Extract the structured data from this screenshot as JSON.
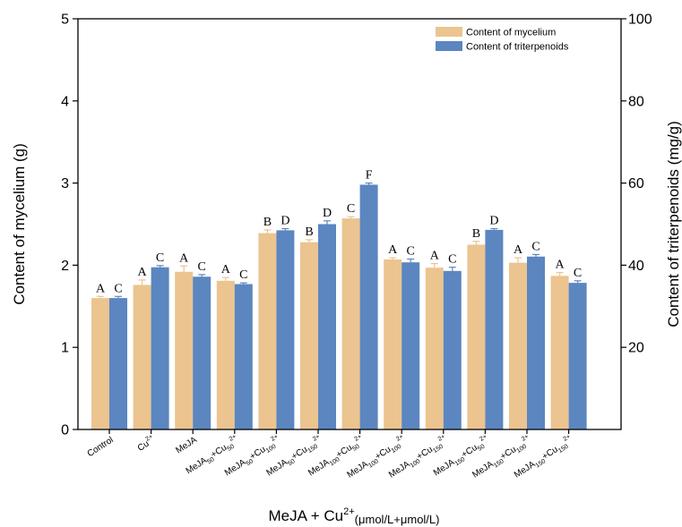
{
  "chart_data": {
    "type": "bar",
    "categories": [
      {
        "id": "control",
        "base": "Control",
        "sub1": "",
        "sup1": "",
        "plus": "",
        "base2": "",
        "sub2": "",
        "sup2": ""
      },
      {
        "id": "cu",
        "base": "Cu",
        "sub1": "",
        "sup1": "2+",
        "plus": "",
        "base2": "",
        "sub2": "",
        "sup2": ""
      },
      {
        "id": "meja",
        "base": "MeJA",
        "sub1": "",
        "sup1": "",
        "plus": "",
        "base2": "",
        "sub2": "",
        "sup2": ""
      },
      {
        "id": "m50c50",
        "base": "MeJA",
        "sub1": "50",
        "sup1": "",
        "plus": "+",
        "base2": "Cu",
        "sub2": "50",
        "sup2": "2+"
      },
      {
        "id": "m50c100",
        "base": "MeJA",
        "sub1": "50",
        "sup1": "",
        "plus": "+",
        "base2": "Cu",
        "sub2": "100",
        "sup2": "2+"
      },
      {
        "id": "m50c150",
        "base": "MeJA",
        "sub1": "50",
        "sup1": "",
        "plus": "+",
        "base2": "Cu",
        "sub2": "150",
        "sup2": "2+"
      },
      {
        "id": "m100c50",
        "base": "MeJA",
        "sub1": "100",
        "sup1": "",
        "plus": "+",
        "base2": "Cu",
        "sub2": "50",
        "sup2": "2+"
      },
      {
        "id": "m100c100",
        "base": "MeJA",
        "sub1": "100",
        "sup1": "",
        "plus": "+",
        "base2": "Cu",
        "sub2": "100",
        "sup2": "2+"
      },
      {
        "id": "m100c150",
        "base": "MeJA",
        "sub1": "100",
        "sup1": "",
        "plus": "+",
        "base2": "Cu",
        "sub2": "150",
        "sup2": "2+"
      },
      {
        "id": "m150c50",
        "base": "MeJA",
        "sub1": "150",
        "sup1": "",
        "plus": "+",
        "base2": "Cu",
        "sub2": "50",
        "sup2": "2+"
      },
      {
        "id": "m150c100",
        "base": "MeJA",
        "sub1": "150",
        "sup1": "",
        "plus": "+",
        "base2": "Cu",
        "sub2": "100",
        "sup2": "2+"
      },
      {
        "id": "m150c150",
        "base": "MeJA",
        "sub1": "150",
        "sup1": "",
        "plus": "+",
        "base2": "Cu",
        "sub2": "150",
        "sup2": "2+"
      }
    ],
    "series": [
      {
        "name": "Content of mycelium",
        "axis": "left",
        "color": "#EBC48F",
        "values": [
          1.6,
          1.76,
          1.92,
          1.81,
          2.39,
          2.28,
          2.57,
          2.07,
          1.97,
          2.25,
          2.03,
          1.87
        ],
        "errors": [
          0.02,
          0.06,
          0.07,
          0.04,
          0.04,
          0.03,
          0.02,
          0.02,
          0.05,
          0.04,
          0.06,
          0.04
        ],
        "letters": [
          "A",
          "A",
          "A",
          "A",
          "B",
          "B",
          "C",
          "A",
          "A",
          "B",
          "A",
          "A"
        ]
      },
      {
        "name": "Content of triterpenoids",
        "axis": "right",
        "color": "#5B86C0",
        "values": [
          32.0,
          39.5,
          37.2,
          35.4,
          48.5,
          50.0,
          59.6,
          40.7,
          38.6,
          48.6,
          42.1,
          35.7
        ],
        "errors": [
          0.4,
          0.4,
          0.5,
          0.3,
          0.4,
          0.8,
          0.4,
          0.8,
          0.9,
          0.3,
          0.5,
          0.5
        ],
        "letters": [
          "C",
          "C",
          "C",
          "C",
          "D",
          "D",
          "F",
          "C",
          "C",
          "D",
          "C",
          "C"
        ]
      }
    ],
    "y_left": {
      "label": "Content of mycelium (g)",
      "range": [
        0,
        5
      ],
      "ticks": [
        0,
        1,
        2,
        3,
        4,
        5
      ]
    },
    "y_right": {
      "label": "Content of triterpenoids (mg/g)",
      "range": [
        0,
        100
      ],
      "ticks": [
        20,
        40,
        60,
        80,
        100
      ]
    },
    "xlabel": {
      "main": "MeJA + Cu",
      "sup": "2+",
      "sub": "(μmol/L+μmol/L)"
    },
    "legend": {
      "position": "top-right"
    },
    "grid": false
  }
}
